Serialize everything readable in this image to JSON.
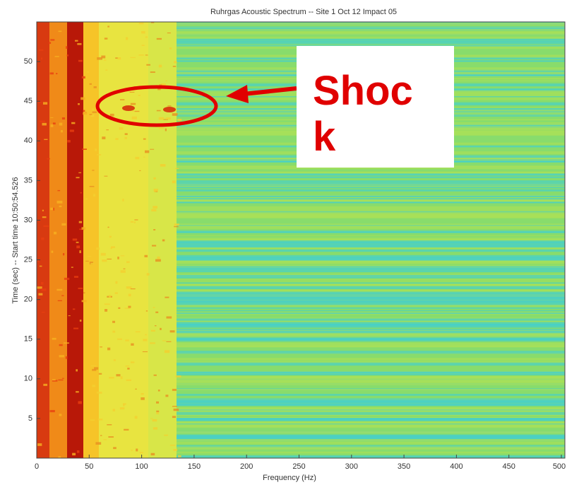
{
  "chart_data": {
    "type": "spectrogram",
    "title": "Ruhrgas Acoustic Spectrum -- Site 1 Oct 12  Impact 05",
    "x_label": "Frequency (Hz)",
    "y_label": "Time (sec) -- Start time 10:50:54.526",
    "xlim": [
      0,
      500
    ],
    "xticks": [
      0,
      50,
      100,
      150,
      200,
      250,
      300,
      350,
      400,
      450,
      500
    ],
    "ylim": [
      0,
      55
    ],
    "yticks": [
      5,
      10,
      15,
      20,
      25,
      30,
      35,
      40,
      45,
      50
    ],
    "annotation": {
      "text": [
        "Shoc",
        "k"
      ]
    }
  }
}
